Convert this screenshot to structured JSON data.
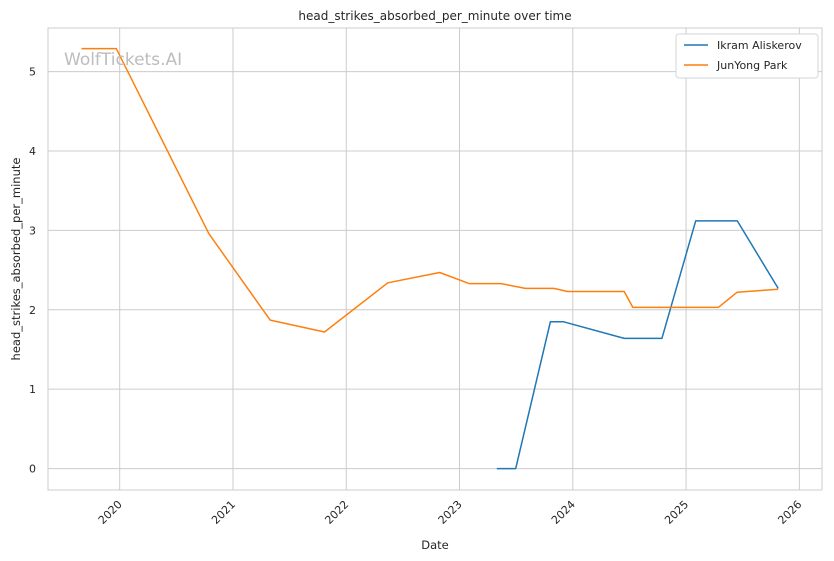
{
  "watermark": "WolfTickets.AI",
  "chart_data": {
    "type": "line",
    "title": "head_strikes_absorbed_per_minute over time",
    "xlabel": "Date",
    "ylabel": "head_strikes_absorbed_per_minute",
    "x_tick_labels": [
      "2020",
      "2021",
      "2022",
      "2023",
      "2024",
      "2025",
      "2026"
    ],
    "y_tick_labels": [
      "0",
      "1",
      "2",
      "3",
      "4",
      "5"
    ],
    "y_ticks": [
      0,
      1,
      2,
      3,
      4,
      5
    ],
    "ylim": [
      -0.27,
      5.55
    ],
    "xlim": [
      "2019-05-15",
      "2026-03-15"
    ],
    "grid": true,
    "legend_position": "top-right",
    "series": [
      {
        "name": "Ikram Aliskerov",
        "color": "#1f77b4",
        "points": [
          [
            "2023-05-01",
            0.0
          ],
          [
            "2023-07-01",
            0.0
          ],
          [
            "2023-10-21",
            1.85
          ],
          [
            "2023-12-01",
            1.85
          ],
          [
            "2024-06-15",
            1.64
          ],
          [
            "2024-10-15",
            1.64
          ],
          [
            "2025-02-01",
            3.12
          ],
          [
            "2025-06-15",
            3.12
          ],
          [
            "2025-10-25",
            2.27
          ]
        ]
      },
      {
        "name": "JunYong Park",
        "color": "#ff7f0e",
        "points": [
          [
            "2019-08-31",
            5.29
          ],
          [
            "2019-12-21",
            5.29
          ],
          [
            "2020-10-15",
            2.96
          ],
          [
            "2021-05-01",
            1.87
          ],
          [
            "2021-10-23",
            1.72
          ],
          [
            "2022-05-15",
            2.34
          ],
          [
            "2022-10-29",
            2.47
          ],
          [
            "2023-02-01",
            2.33
          ],
          [
            "2023-05-15",
            2.33
          ],
          [
            "2023-08-01",
            2.27
          ],
          [
            "2023-11-01",
            2.27
          ],
          [
            "2023-12-15",
            2.23
          ],
          [
            "2024-06-15",
            2.23
          ],
          [
            "2024-07-13",
            2.03
          ],
          [
            "2025-04-15",
            2.03
          ],
          [
            "2025-06-14",
            2.22
          ],
          [
            "2025-10-25",
            2.26
          ]
        ]
      }
    ]
  }
}
